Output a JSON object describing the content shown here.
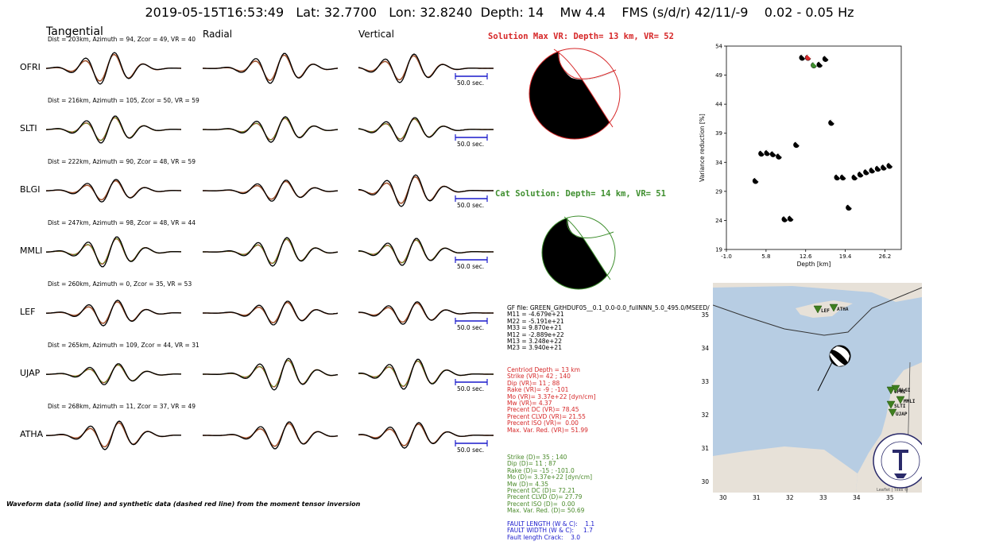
{
  "title": "2019-05-15T16:53:49   Lat: 32.7700   Lon: 32.8240  Depth: 14    Mw 4.4    FMS (s/d/r) 42/11/-9    0.02 - 0.05 Hz",
  "columns": [
    "Tangential",
    "Radial",
    "Vertical"
  ],
  "stations": [
    {
      "name": "OFRI",
      "info": "Dist = 203km, Azimuth = 94, Zcor = 49, VR = 40"
    },
    {
      "name": "SLTI",
      "info": "Dist = 216km, Azimuth = 105, Zcor = 50, VR = 59"
    },
    {
      "name": "BLGI",
      "info": "Dist = 222km, Azimuth = 90, Zcor = 48, VR = 59"
    },
    {
      "name": "MMLI",
      "info": "Dist = 247km, Azimuth = 98, Zcor = 48, VR = 44"
    },
    {
      "name": "LEF",
      "info": "Dist = 260km, Azimuth = 0, Zcor = 35, VR = 53"
    },
    {
      "name": "UJAP",
      "info": "Dist = 265km, Azimuth = 109, Zcor = 44, VR = 31"
    },
    {
      "name": "ATHA",
      "info": "Dist = 268km, Azimuth = 11, Zcor = 37, VR = 49"
    }
  ],
  "scale_label": "50.0 sec.",
  "caption": "Waveform data (solid line) and synthetic data (dashed red line) from the moment tensor inversion",
  "solution_max": "Solution Max VR: Depth= 13 km, VR= 52",
  "solution_cat": "Cat Solution: Depth= 14 km, VR= 51",
  "gf_block": [
    "GF file: GREEN_GitHDUF05__0.1_0.0-0.0_fullNNN_5.0_495.0/MSEED/",
    "M11 = -4.679e+21",
    "M22 = -5.191e+21",
    "M33 = 9.870e+21",
    "M12 = -2.889e+22",
    "M13 = 3.248e+22",
    "M23 = 3.940e+21"
  ],
  "red_block": [
    "Centriod Depth = 13 km",
    "Strike (VR)= 42 ; 140",
    "Dip (VR)= 11 ; 88",
    "Rake (VR)= -9 ; -101",
    "Mo (VR)= 3.37e+22 [dyn/cm]",
    "Mw (VR)= 4.37",
    "Precent DC (VR)= 78.45",
    "Precent CLVD (VR)= 21.55",
    "Precent ISO (VR)=  0.00",
    "Max. Var. Red. (VR)= 51.99"
  ],
  "green_block": [
    "Strike (D)= 35 ; 140",
    "Dip (D)= 11 ; 87",
    "Rake (D)= -15 ; -101.0",
    "Mo (D)= 3.37e+22 [dyn/cm]",
    "Mw (D)= 4.35",
    "Precent DC (D)= 72.21",
    "Precent CLVD (D)= 27.79",
    "Precent ISO (D)=  0.00",
    "Max. Var. Red. (D)= 50.69"
  ],
  "blue_block": [
    "FAULT LENGTH (W & C):    1.1",
    "FAULT WIDTH (W & C):     1.7",
    "Fault length Crack:    3.0"
  ],
  "colors": {
    "data": "#000000",
    "synthetic": "#a0522d",
    "synthetic_alt": "#6b8e23",
    "red": "#d62728",
    "green": "#3f8f2f",
    "blue": "#1a1acc",
    "sea": "#b7cde3",
    "land": "#e7e1d8",
    "station": "#3f7f1f"
  },
  "chart_data": {
    "type": "scatter",
    "xlabel": "Depth [km]",
    "ylabel": "Variance reduction [%]",
    "xlim": [
      -1.0,
      29.0
    ],
    "ylim": [
      19,
      54
    ],
    "xticks": [
      -1.0,
      5.8,
      12.6,
      19.4,
      26.2
    ],
    "yticks": [
      19,
      24,
      29,
      34,
      39,
      44,
      49,
      54
    ],
    "points": [
      {
        "x": 4.0,
        "y": 30.8
      },
      {
        "x": 5.0,
        "y": 35.5
      },
      {
        "x": 6.0,
        "y": 35.6
      },
      {
        "x": 7.0,
        "y": 35.4
      },
      {
        "x": 8.0,
        "y": 35.0
      },
      {
        "x": 9.0,
        "y": 24.2
      },
      {
        "x": 10.0,
        "y": 24.3
      },
      {
        "x": 11.0,
        "y": 37.0
      },
      {
        "x": 12.0,
        "y": 52.0
      },
      {
        "x": 13.0,
        "y": 52.0,
        "role": "max"
      },
      {
        "x": 14.0,
        "y": 50.7,
        "role": "cat"
      },
      {
        "x": 15.0,
        "y": 50.8
      },
      {
        "x": 16.0,
        "y": 51.8
      },
      {
        "x": 17.0,
        "y": 40.8
      },
      {
        "x": 18.0,
        "y": 31.4
      },
      {
        "x": 19.0,
        "y": 31.4
      },
      {
        "x": 20.0,
        "y": 26.2
      },
      {
        "x": 21.0,
        "y": 31.4
      },
      {
        "x": 22.0,
        "y": 31.9
      },
      {
        "x": 23.0,
        "y": 32.3
      },
      {
        "x": 24.0,
        "y": 32.6
      },
      {
        "x": 25.0,
        "y": 32.9
      },
      {
        "x": 26.0,
        "y": 33.1
      },
      {
        "x": 27.0,
        "y": 33.4
      }
    ]
  },
  "map": {
    "xticks": [
      "30",
      "31",
      "32",
      "33",
      "34",
      "35"
    ],
    "yticks": [
      "35",
      "34",
      "33",
      "32",
      "31",
      "30"
    ],
    "stations": [
      "LEF",
      "ATHA",
      "OFRI",
      "BLGI",
      "MMLI",
      "SLTI",
      "UJAP"
    ],
    "attribution": "Leaflet | Tiles ©",
    "seal_text": "GEOLOGICAL SURVEY OF ISRAEL"
  }
}
